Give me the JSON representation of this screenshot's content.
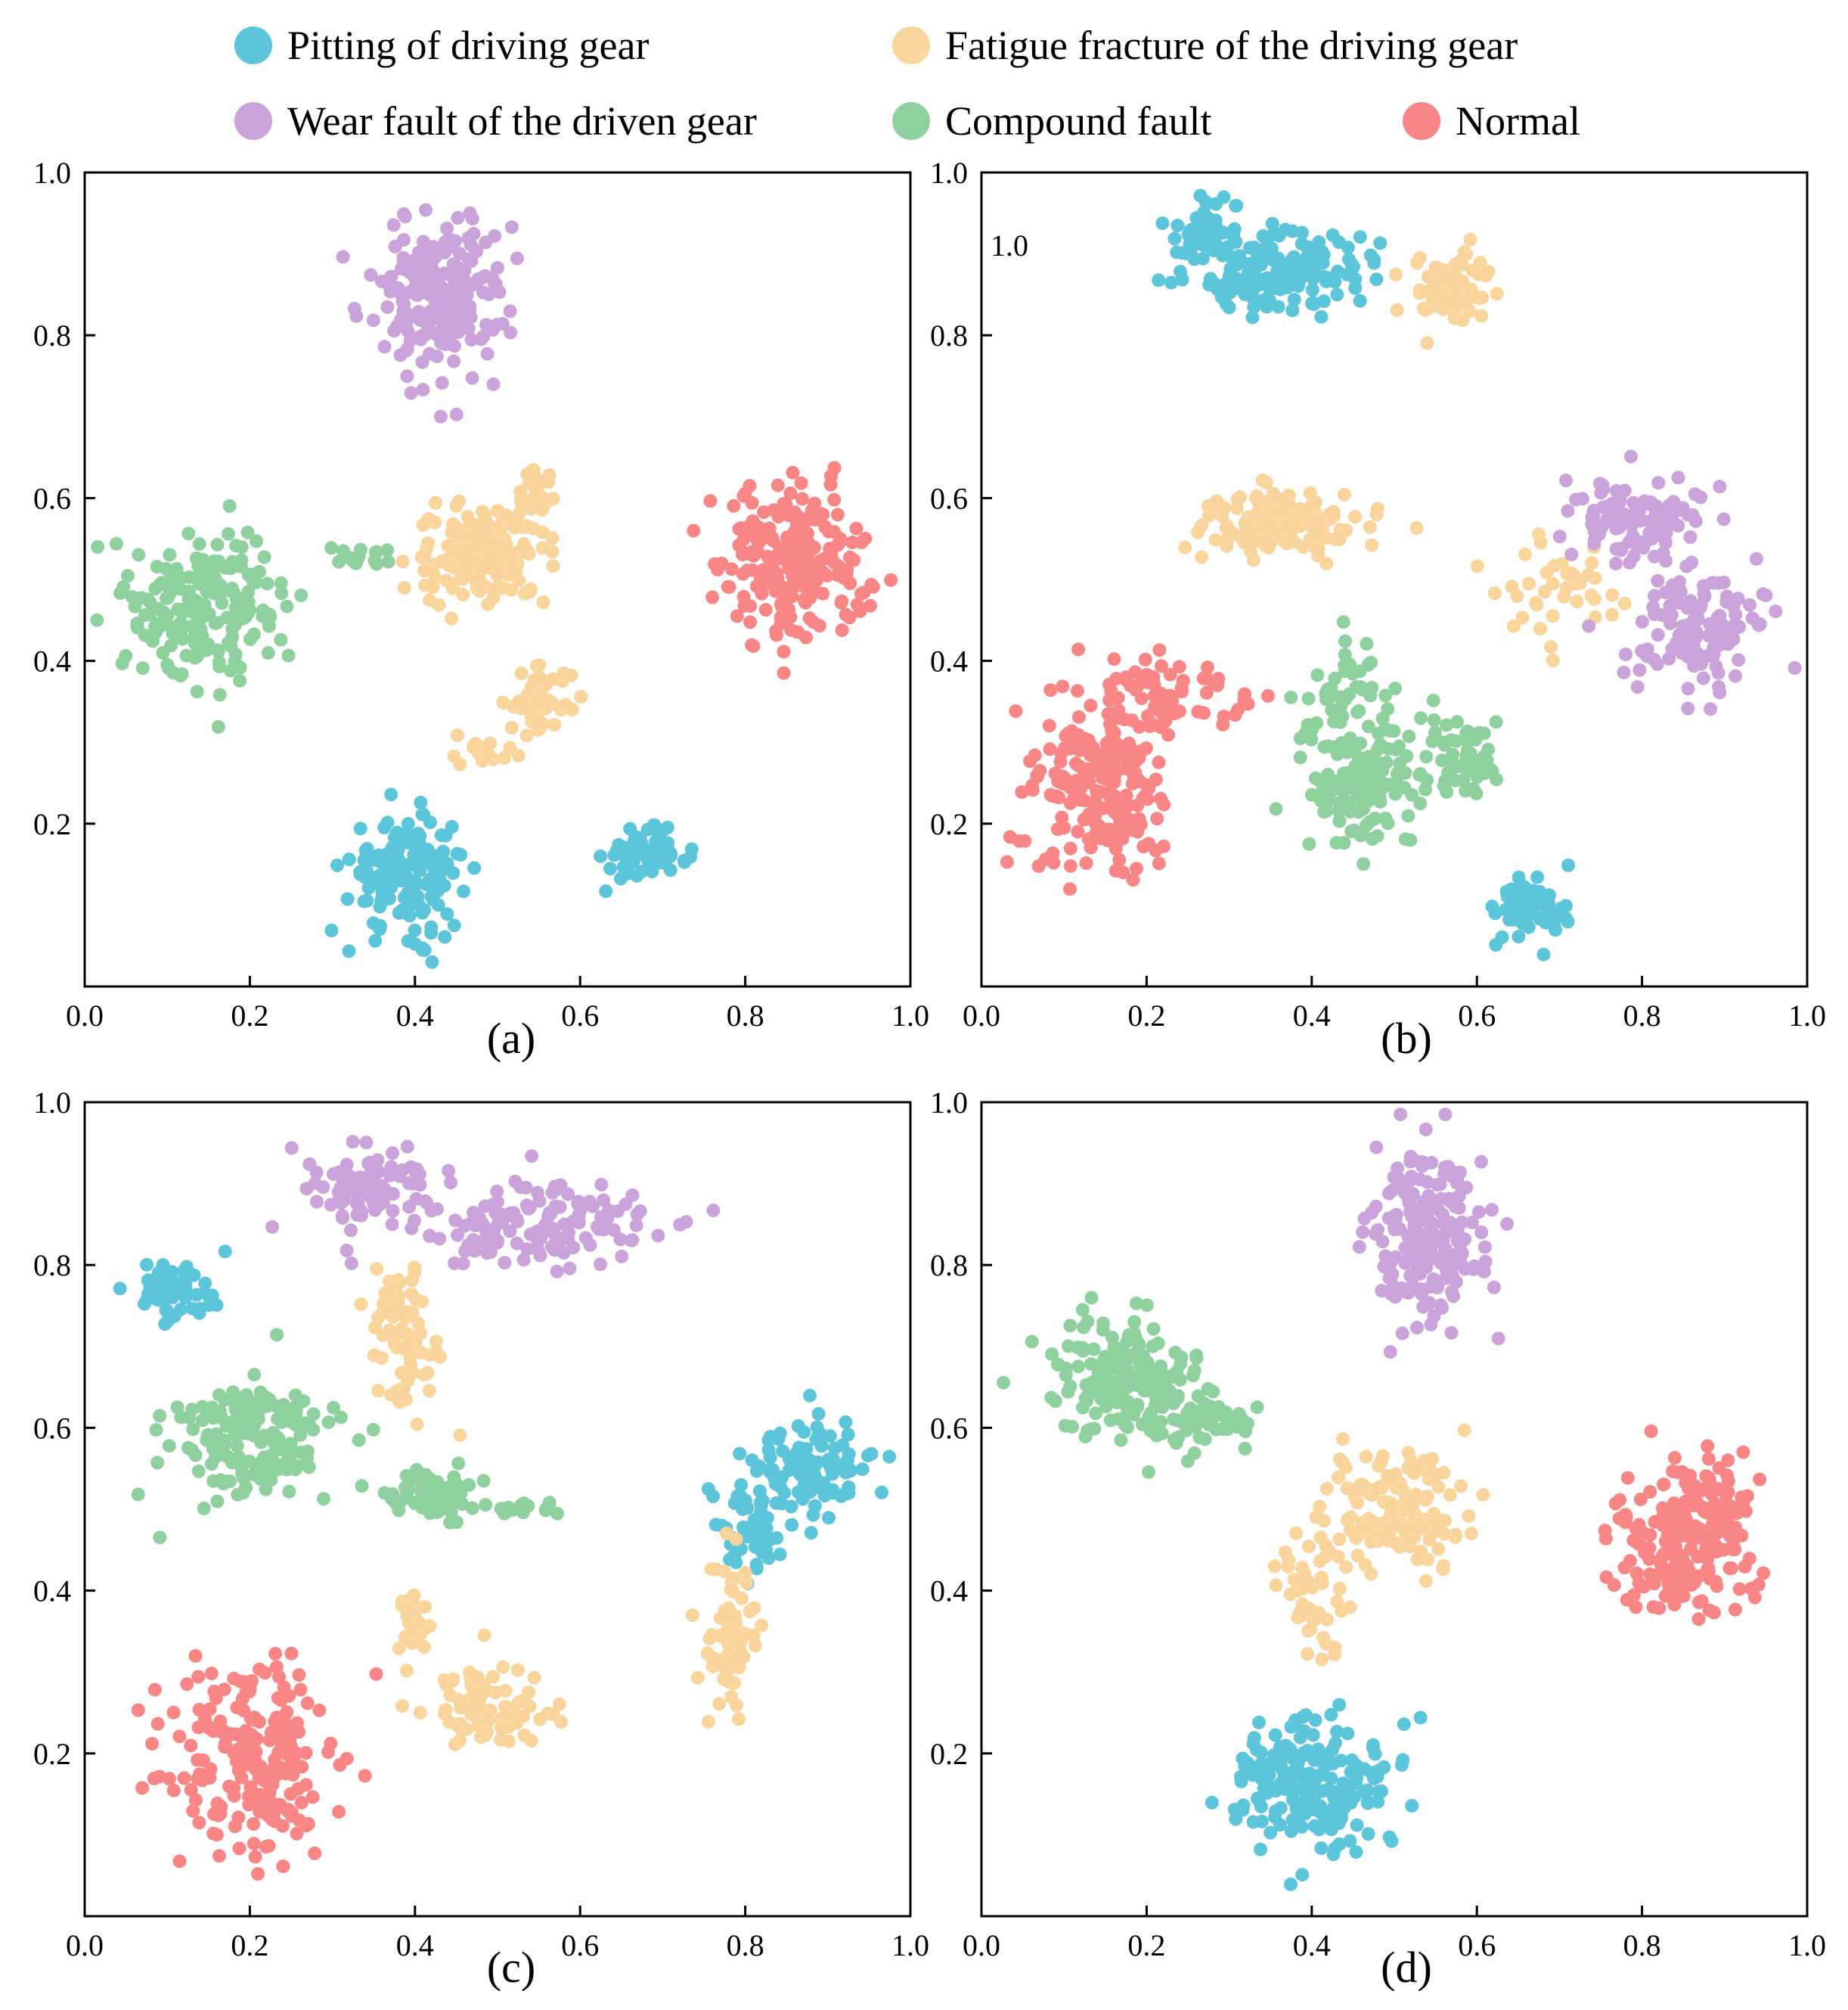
{
  "legend": [
    {
      "name": "Pitting of driving gear",
      "color": "#5BC5DA"
    },
    {
      "name": "Fatigue fracture of the driving gear",
      "color": "#F9D49B"
    },
    {
      "name": "Wear fault of the driven gear",
      "color": "#C9A3D9"
    },
    {
      "name": "Compound fault",
      "color": "#8FD19E"
    },
    {
      "name": "Normal",
      "color": "#FA8585"
    }
  ],
  "chart_data": [
    {
      "type": "scatter",
      "panel": "(a)",
      "xlim": [
        0,
        1
      ],
      "ylim": [
        0,
        1.0
      ],
      "xticks": [
        "0.0",
        "0.2",
        "0.4",
        "0.6",
        "0.8",
        "1.0"
      ],
      "yticks": [
        "0.2",
        "0.4",
        "0.6",
        "0.8",
        "1.0"
      ],
      "annotation": "",
      "series": [
        {
          "name": "Pitting of driving gear",
          "clusters": [
            {
              "x": 0.39,
              "y": 0.14,
              "sx": 0.035,
              "sy": 0.035,
              "n": 170
            },
            {
              "x": 0.68,
              "y": 0.16,
              "sx": 0.025,
              "sy": 0.015,
              "n": 70
            }
          ]
        },
        {
          "name": "Fatigue fracture of the driving gear",
          "clusters": [
            {
              "x": 0.48,
              "y": 0.53,
              "sx": 0.04,
              "sy": 0.03,
              "n": 150
            },
            {
              "x": 0.55,
              "y": 0.61,
              "sx": 0.01,
              "sy": 0.02,
              "n": 25
            },
            {
              "x": 0.55,
              "y": 0.35,
              "sx": 0.02,
              "sy": 0.02,
              "n": 50
            },
            {
              "x": 0.49,
              "y": 0.29,
              "sx": 0.02,
              "sy": 0.01,
              "n": 15
            }
          ]
        },
        {
          "name": "Wear fault of the driven gear",
          "clusters": [
            {
              "x": 0.43,
              "y": 0.85,
              "sx": 0.04,
              "sy": 0.05,
              "n": 220
            }
          ]
        },
        {
          "name": "Compound fault",
          "clusters": [
            {
              "x": 0.15,
              "y": 0.47,
              "sx": 0.045,
              "sy": 0.045,
              "n": 200
            },
            {
              "x": 0.34,
              "y": 0.53,
              "sx": 0.02,
              "sy": 0.008,
              "n": 15
            }
          ]
        },
        {
          "name": "Normal",
          "clusters": [
            {
              "x": 0.86,
              "y": 0.52,
              "sx": 0.045,
              "sy": 0.045,
              "n": 230
            }
          ]
        }
      ]
    },
    {
      "type": "scatter",
      "panel": "(b)",
      "xlim": [
        0,
        1
      ],
      "ylim": [
        0,
        1.0
      ],
      "xticks": [
        "0.0",
        "0.2",
        "0.4",
        "0.6",
        "0.8",
        "1.0"
      ],
      "yticks": [
        "0.2",
        "0.4",
        "0.6",
        "0.8",
        "1.0"
      ],
      "annotation": "1.0",
      "series": [
        {
          "name": "Pitting of driving gear",
          "clusters": [
            {
              "x": 0.36,
              "y": 0.88,
              "sx": 0.05,
              "sy": 0.025,
              "n": 170
            },
            {
              "x": 0.27,
              "y": 0.93,
              "sx": 0.02,
              "sy": 0.02,
              "n": 40
            },
            {
              "x": 0.66,
              "y": 0.1,
              "sx": 0.025,
              "sy": 0.02,
              "n": 70
            }
          ]
        },
        {
          "name": "Fatigue fracture of the driving gear",
          "clusters": [
            {
              "x": 0.57,
              "y": 0.86,
              "sx": 0.025,
              "sy": 0.025,
              "n": 70
            },
            {
              "x": 0.37,
              "y": 0.57,
              "sx": 0.05,
              "sy": 0.02,
              "n": 130
            },
            {
              "x": 0.7,
              "y": 0.49,
              "sx": 0.04,
              "sy": 0.04,
              "n": 40
            }
          ]
        },
        {
          "name": "Wear fault of the driven gear",
          "clusters": [
            {
              "x": 0.79,
              "y": 0.57,
              "sx": 0.04,
              "sy": 0.025,
              "n": 110
            },
            {
              "x": 0.87,
              "y": 0.44,
              "sx": 0.04,
              "sy": 0.035,
              "n": 130
            }
          ]
        },
        {
          "name": "Compound fault",
          "clusters": [
            {
              "x": 0.46,
              "y": 0.24,
              "sx": 0.03,
              "sy": 0.035,
              "n": 120
            },
            {
              "x": 0.44,
              "y": 0.35,
              "sx": 0.03,
              "sy": 0.04,
              "n": 60
            },
            {
              "x": 0.58,
              "y": 0.28,
              "sx": 0.025,
              "sy": 0.025,
              "n": 60
            }
          ]
        },
        {
          "name": "Normal",
          "clusters": [
            {
              "x": 0.14,
              "y": 0.24,
              "sx": 0.04,
              "sy": 0.06,
              "n": 200
            },
            {
              "x": 0.23,
              "y": 0.36,
              "sx": 0.05,
              "sy": 0.025,
              "n": 70
            }
          ]
        }
      ]
    },
    {
      "type": "scatter",
      "panel": "(c)",
      "xlim": [
        0,
        1
      ],
      "ylim": [
        0,
        1.0
      ],
      "xticks": [
        "0.0",
        "0.2",
        "0.4",
        "0.6",
        "0.8",
        "1.0"
      ],
      "yticks": [
        "0.2",
        "0.4",
        "0.6",
        "0.8",
        "1.0"
      ],
      "annotation": "",
      "series": [
        {
          "name": "Pitting of driving gear",
          "clusters": [
            {
              "x": 0.11,
              "y": 0.77,
              "sx": 0.025,
              "sy": 0.02,
              "n": 60
            },
            {
              "x": 0.88,
              "y": 0.55,
              "sx": 0.04,
              "sy": 0.03,
              "n": 100
            },
            {
              "x": 0.8,
              "y": 0.48,
              "sx": 0.02,
              "sy": 0.03,
              "n": 50
            }
          ]
        },
        {
          "name": "Fatigue fracture of the driving gear",
          "clusters": [
            {
              "x": 0.39,
              "y": 0.71,
              "sx": 0.02,
              "sy": 0.05,
              "n": 70
            },
            {
              "x": 0.4,
              "y": 0.36,
              "sx": 0.01,
              "sy": 0.02,
              "n": 30
            },
            {
              "x": 0.49,
              "y": 0.25,
              "sx": 0.04,
              "sy": 0.03,
              "n": 80
            },
            {
              "x": 0.78,
              "y": 0.33,
              "sx": 0.015,
              "sy": 0.05,
              "n": 80
            }
          ]
        },
        {
          "name": "Wear fault of the driven gear",
          "clusters": [
            {
              "x": 0.34,
              "y": 0.9,
              "sx": 0.04,
              "sy": 0.025,
              "n": 90
            },
            {
              "x": 0.56,
              "y": 0.85,
              "sx": 0.07,
              "sy": 0.025,
              "n": 140
            }
          ]
        },
        {
          "name": "Compound fault",
          "clusters": [
            {
              "x": 0.2,
              "y": 0.58,
              "sx": 0.05,
              "sy": 0.04,
              "n": 170
            },
            {
              "x": 0.42,
              "y": 0.52,
              "sx": 0.025,
              "sy": 0.015,
              "n": 80
            },
            {
              "x": 0.53,
              "y": 0.5,
              "sx": 0.025,
              "sy": 0.004,
              "n": 15
            }
          ]
        },
        {
          "name": "Normal",
          "clusters": [
            {
              "x": 0.2,
              "y": 0.2,
              "sx": 0.05,
              "sy": 0.06,
              "n": 210
            }
          ]
        }
      ]
    },
    {
      "type": "scatter",
      "panel": "(d)",
      "xlim": [
        0,
        1
      ],
      "ylim": [
        0,
        1.0
      ],
      "xticks": [
        "0.0",
        "0.2",
        "0.4",
        "0.6",
        "0.8",
        "1.0"
      ],
      "yticks": [
        "0.2",
        "0.4",
        "0.6",
        "0.8",
        "1.0"
      ],
      "annotation": "",
      "series": [
        {
          "name": "Pitting of driving gear",
          "clusters": [
            {
              "x": 0.4,
              "y": 0.16,
              "sx": 0.045,
              "sy": 0.045,
              "n": 200
            }
          ]
        },
        {
          "name": "Fatigue fracture of the driving gear",
          "clusters": [
            {
              "x": 0.5,
              "y": 0.5,
              "sx": 0.04,
              "sy": 0.035,
              "n": 150
            },
            {
              "x": 0.4,
              "y": 0.41,
              "sx": 0.02,
              "sy": 0.04,
              "n": 50
            }
          ]
        },
        {
          "name": "Wear fault of the driven gear",
          "clusters": [
            {
              "x": 0.54,
              "y": 0.84,
              "sx": 0.035,
              "sy": 0.055,
              "n": 200
            }
          ]
        },
        {
          "name": "Compound fault",
          "clusters": [
            {
              "x": 0.17,
              "y": 0.66,
              "sx": 0.045,
              "sy": 0.04,
              "n": 170
            },
            {
              "x": 0.28,
              "y": 0.61,
              "sx": 0.03,
              "sy": 0.015,
              "n": 50
            }
          ]
        },
        {
          "name": "Normal",
          "clusters": [
            {
              "x": 0.86,
              "y": 0.47,
              "sx": 0.04,
              "sy": 0.05,
              "n": 220
            }
          ]
        }
      ]
    }
  ]
}
